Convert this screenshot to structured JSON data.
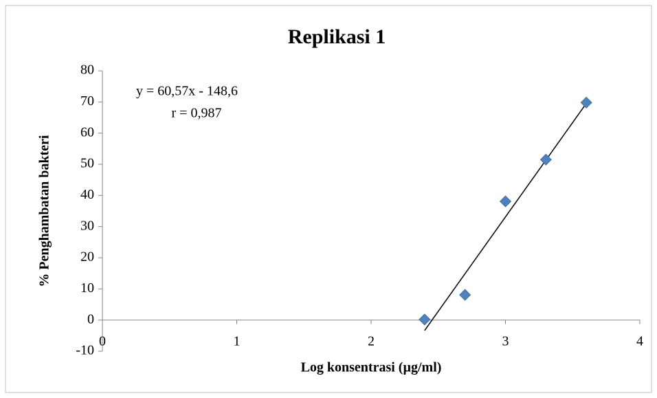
{
  "chart_data": {
    "type": "scatter",
    "title": "Replikasi 1",
    "x_label": "Log konsentrasi (µg/ml)",
    "y_label": "% Penghambatan bakteri",
    "x": [
      2.398,
      2.699,
      3.0,
      3.301,
      3.602
    ],
    "values": [
      0.2,
      8.1,
      38.1,
      51.5,
      69.8
    ],
    "color": "#4f81bd",
    "xlim": [
      0,
      4
    ],
    "xticks": [
      0,
      1,
      2,
      3,
      4
    ],
    "ylim": [
      -10,
      80
    ],
    "yticks": [
      -10,
      0,
      10,
      20,
      30,
      40,
      50,
      60,
      70,
      80
    ],
    "trendline": {
      "slope": 60.57,
      "intercept": -148.6,
      "color": "#000000"
    },
    "annotations": [
      "y = 60,57x - 148,6",
      "r = 0,987"
    ]
  }
}
